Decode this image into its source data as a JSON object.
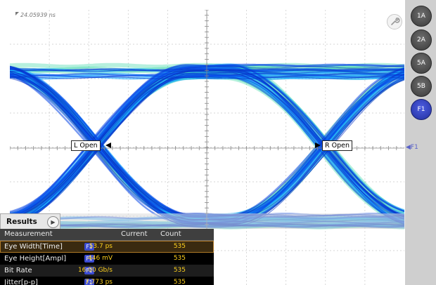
{
  "scope": {
    "timestamp": "24.05939 ns",
    "l_marker": "L Open",
    "r_marker": "R Open",
    "ref_label": "F1"
  },
  "channel_buttons": [
    "1A",
    "2A",
    "5A",
    "5B",
    "F1"
  ],
  "results": {
    "tab_label": "Results",
    "columns": [
      "Measurement",
      "Current",
      "Count"
    ],
    "rows": [
      {
        "name": "Eye Width[Time]",
        "badge": "F1",
        "current": "53.7 ps",
        "count": "535"
      },
      {
        "name": "Eye Height[Ampl]",
        "badge": "F1",
        "current": "446 mV",
        "count": "535"
      },
      {
        "name": "Bit Rate",
        "badge": "F1",
        "current": "16.00 Gb/s",
        "count": "535"
      },
      {
        "name": "Jitter[p-p]",
        "badge": "F1",
        "current": "7.773 ps",
        "count": "535"
      }
    ]
  },
  "colors": {
    "trace_core": "#0a47e6",
    "trace_mid": "#1aa8ff",
    "trace_edge": "#2fd4a0",
    "active_button": "#3a47d0",
    "value_text": "#ffd21e"
  },
  "icons": [
    "wrench-icon",
    "play-icon"
  ]
}
